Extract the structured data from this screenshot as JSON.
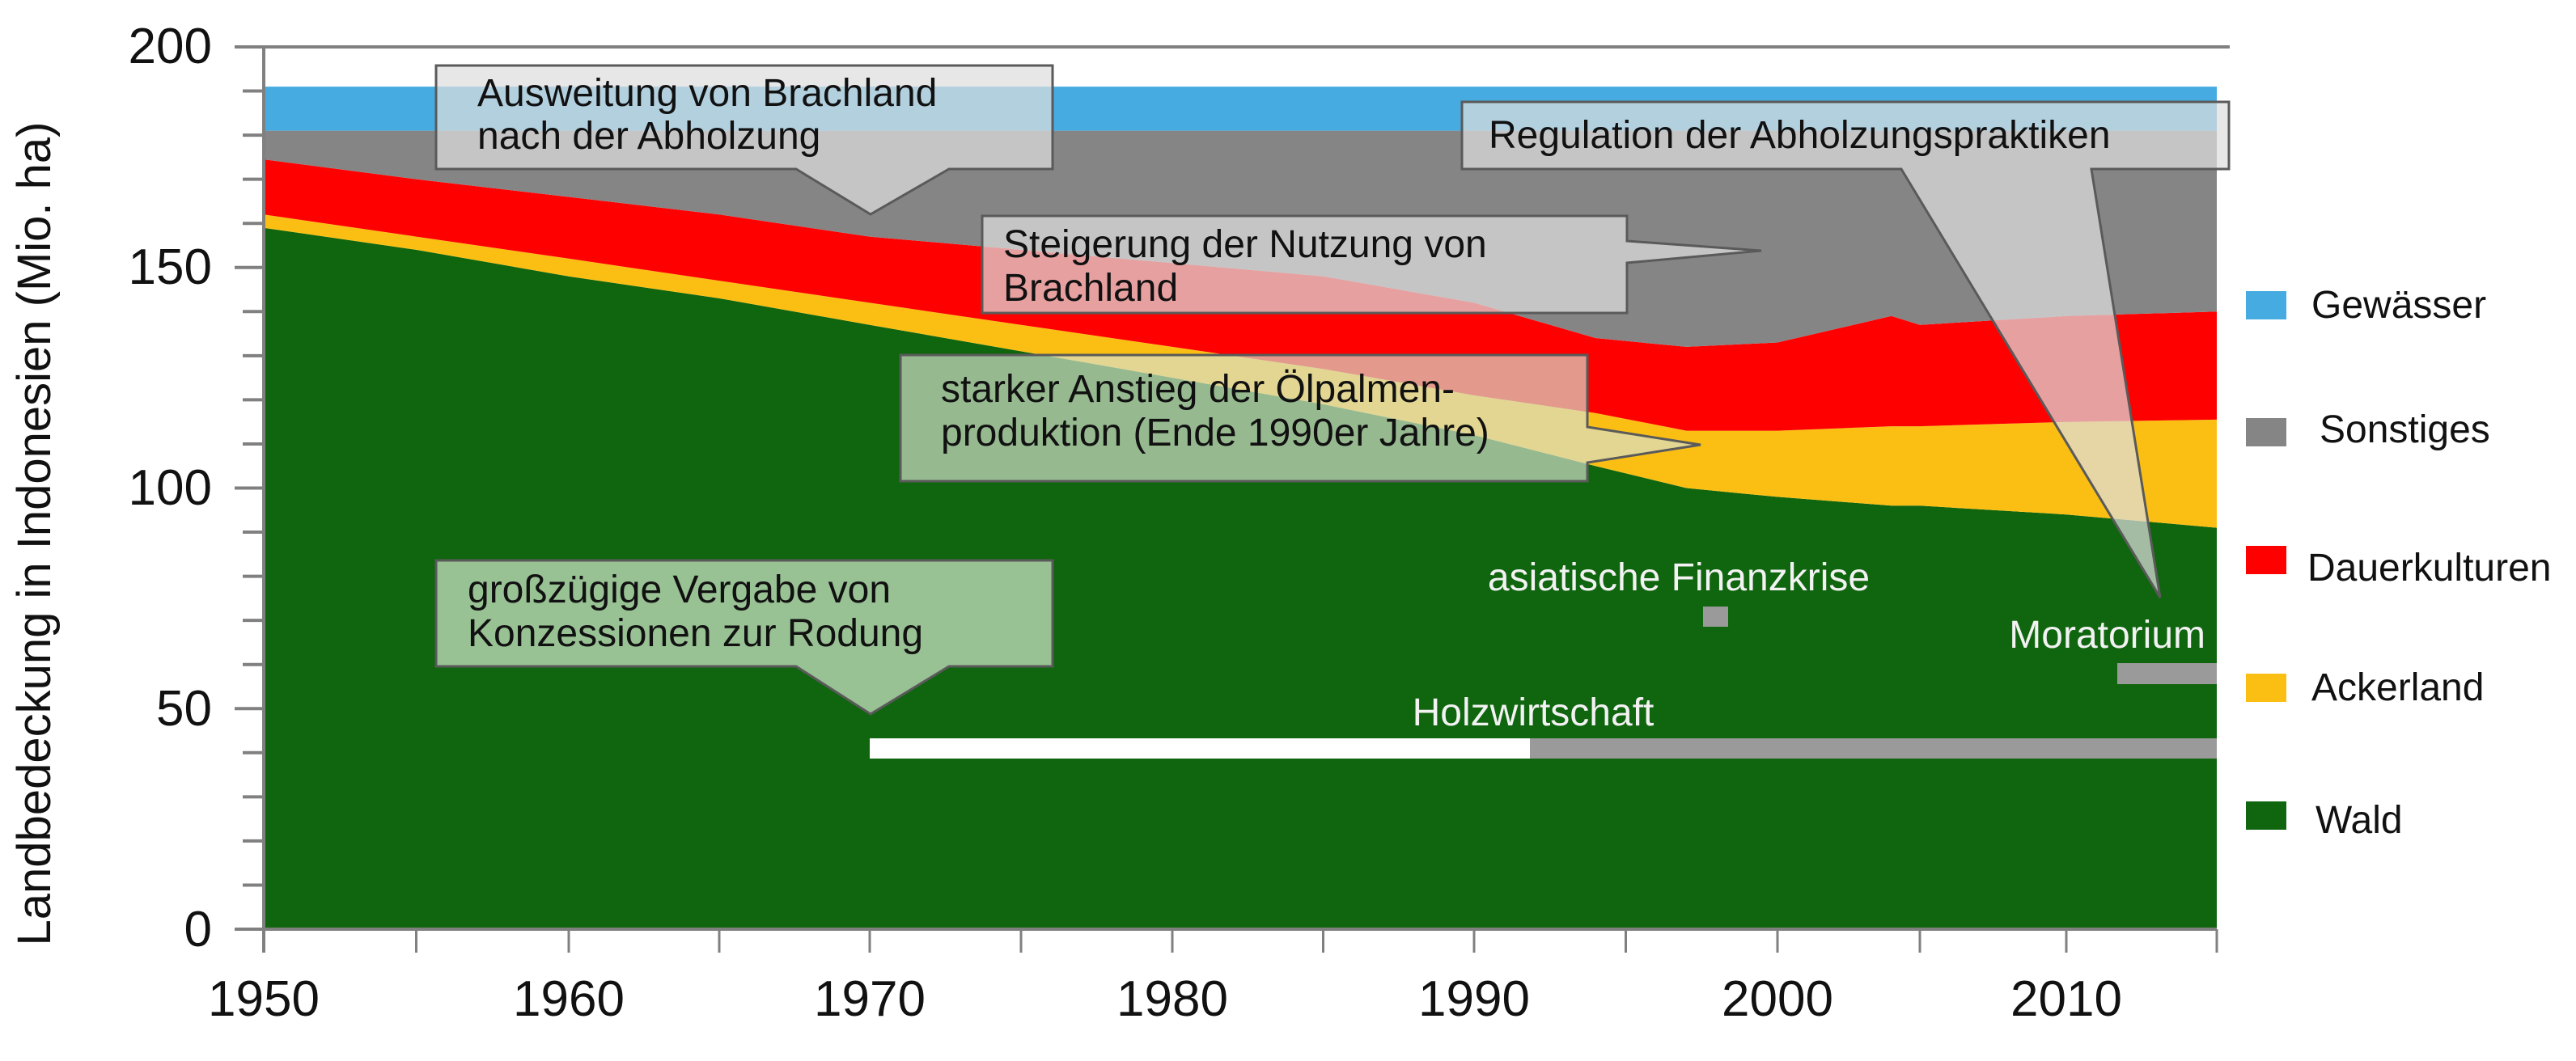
{
  "chart_data": {
    "type": "area",
    "stacked": true,
    "title": "",
    "xlabel": "",
    "ylabel": "Landbedeckung in Indonesien (Mio. ha)",
    "xlim": [
      1950,
      2015
    ],
    "ylim": [
      0,
      200
    ],
    "x_ticks": [
      1950,
      1960,
      1970,
      1980,
      1990,
      2000,
      2010
    ],
    "y_ticks": [
      0,
      50,
      100,
      150,
      200
    ],
    "y_minor_step": 10,
    "x_minor_step": 5,
    "grid": false,
    "legend_position": "right",
    "x": [
      1950,
      1955,
      1960,
      1965,
      1970,
      1975,
      1980,
      1985,
      1990,
      1994,
      1997,
      2000,
      2004,
      2005,
      2010,
      2015
    ],
    "series": [
      {
        "name": "Wald",
        "color": "#10650f",
        "values": [
          159,
          154,
          148,
          143,
          137,
          131,
          125,
          119,
          112,
          105,
          100,
          98,
          96,
          96,
          94,
          91
        ]
      },
      {
        "name": "Ackerland",
        "color": "#fbbf14",
        "values": [
          3,
          3,
          4,
          4,
          5,
          6,
          7,
          8,
          9,
          12,
          13,
          15,
          18,
          18,
          21,
          24.5
        ]
      },
      {
        "name": "Dauerkulturen",
        "color": "#ff0000",
        "values": [
          12.5,
          13,
          14,
          15,
          15,
          17,
          19,
          21,
          21,
          17,
          19,
          20,
          25,
          23,
          24,
          24.5
        ]
      },
      {
        "name": "Sonstiges",
        "color": "#858585",
        "values": [
          6.5,
          11,
          15,
          19,
          24,
          27,
          30,
          33,
          39,
          47,
          49,
          48,
          42,
          44,
          42,
          41
        ]
      },
      {
        "name": "Gewässer",
        "color": "#46abe0",
        "values": [
          10,
          10,
          10,
          10,
          10,
          10,
          10,
          10,
          10,
          10,
          10,
          10,
          10,
          10,
          10,
          10
        ]
      }
    ],
    "legend": [
      {
        "label": "Gewässer",
        "color": "#46abe0"
      },
      {
        "label": "Sonstiges",
        "color": "#858585"
      },
      {
        "label": "Dauerkulturen",
        "color": "#ff0000"
      },
      {
        "label": "Ackerland",
        "color": "#fbbf14"
      },
      {
        "label": "Wald",
        "color": "#10650f"
      }
    ],
    "annotations": [
      {
        "id": "ausweitung",
        "lines": [
          "Ausweitung von Brachland",
          "nach der Abholzung"
        ],
        "points_to_year": 1970
      },
      {
        "id": "steigerung",
        "lines": [
          "Steigerung der Nutzung von",
          "Brachland"
        ],
        "points_to_year": 1999
      },
      {
        "id": "oelpalmen",
        "lines": [
          "starker Anstieg der Ölpalmen-",
          "produktion (Ende 1990er Jahre)"
        ],
        "points_to_year": 1997
      },
      {
        "id": "regulation",
        "lines": [
          "Regulation der Abholzungspraktiken"
        ],
        "points_to_year": 2013
      },
      {
        "id": "konzessionen",
        "lines": [
          "großzügige Vergabe von",
          "Konzessionen zur Rodung"
        ],
        "points_to_year": 1970
      }
    ],
    "timeline_markers": [
      {
        "label": "Holzwirtschaft",
        "segments": [
          {
            "from": 1970,
            "to": 1992,
            "color": "#ffffff"
          },
          {
            "from": 1992,
            "to": 2015,
            "color": "#9a9a9a"
          }
        ],
        "y": [
          38,
          42.5
        ]
      },
      {
        "label": "asiatische Finanzkrise",
        "segments": [
          {
            "from": 1997.5,
            "to": 1998.3,
            "color": "#9a9a9a"
          }
        ],
        "y": [
          68,
          72.5
        ]
      },
      {
        "label": "Moratorium",
        "segments": [
          {
            "from": 2011.7,
            "to": 2015,
            "color": "#9a9a9a"
          }
        ],
        "y": [
          55,
          59.7
        ]
      }
    ]
  },
  "axis": {
    "ylabel": "Landbedeckung in Indonesien (Mio. ha)",
    "y_tick_labels": [
      "0",
      "50",
      "100",
      "150",
      "200"
    ],
    "x_tick_labels": [
      "1950",
      "1960",
      "1970",
      "1980",
      "1990",
      "2000",
      "2010"
    ]
  },
  "legend": {
    "items": [
      {
        "label": "Gewässer"
      },
      {
        "label": "Sonstiges"
      },
      {
        "label": "Dauerkulturen"
      },
      {
        "label": "Ackerland"
      },
      {
        "label": "Wald"
      }
    ]
  },
  "notes": {
    "ausweitung": {
      "line1": "Ausweitung von Brachland",
      "line2": "nach der Abholzung"
    },
    "steigerung": {
      "line1": "Steigerung der Nutzung von",
      "line2": "Brachland"
    },
    "oelpalmen": {
      "line1": "starker Anstieg der Ölpalmen-",
      "line2": "produktion (Ende 1990er Jahre)"
    },
    "regulation": {
      "line1": "Regulation der Abholzungspraktiken"
    },
    "konzessionen": {
      "line1": "großzügige Vergabe von",
      "line2": "Konzessionen zur Rodung"
    }
  },
  "markers": {
    "holzwirtschaft": "Holzwirtschaft",
    "finanzkrise": "asiatische Finanzkrise",
    "moratorium": "Moratorium"
  }
}
